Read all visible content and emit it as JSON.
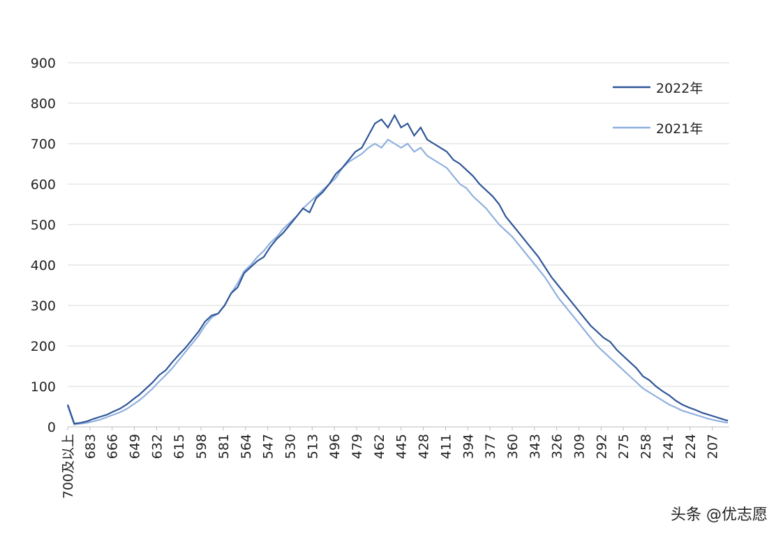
{
  "chart_data": {
    "type": "line",
    "x": [
      700,
      695,
      690,
      685,
      680,
      675,
      670,
      665,
      660,
      655,
      650,
      645,
      640,
      635,
      630,
      625,
      620,
      615,
      610,
      605,
      600,
      595,
      590,
      585,
      580,
      575,
      570,
      565,
      560,
      555,
      550,
      545,
      540,
      535,
      530,
      525,
      520,
      515,
      510,
      505,
      500,
      495,
      490,
      485,
      480,
      475,
      470,
      465,
      460,
      455,
      450,
      445,
      440,
      435,
      430,
      425,
      420,
      415,
      410,
      405,
      400,
      395,
      390,
      385,
      380,
      375,
      370,
      365,
      360,
      355,
      350,
      345,
      340,
      335,
      330,
      325,
      320,
      315,
      310,
      305,
      300,
      295,
      290,
      285,
      280,
      275,
      270,
      265,
      260,
      255,
      250,
      245,
      240,
      235,
      230,
      225,
      220,
      215,
      210,
      205,
      200,
      195
    ],
    "series": [
      {
        "name": "2022年",
        "color": "#2e5597",
        "values": [
          55,
          8,
          10,
          14,
          20,
          25,
          30,
          38,
          45,
          55,
          68,
          80,
          95,
          110,
          128,
          140,
          160,
          178,
          195,
          215,
          235,
          260,
          275,
          280,
          300,
          330,
          345,
          380,
          395,
          410,
          420,
          445,
          465,
          480,
          500,
          520,
          540,
          530,
          565,
          580,
          600,
          625,
          640,
          660,
          680,
          690,
          720,
          750,
          760,
          740,
          770,
          740,
          750,
          720,
          740,
          710,
          700,
          690,
          680,
          660,
          650,
          635,
          620,
          600,
          585,
          570,
          550,
          520,
          500,
          480,
          460,
          440,
          420,
          395,
          370,
          350,
          330,
          310,
          290,
          270,
          250,
          235,
          220,
          210,
          190,
          175,
          160,
          145,
          125,
          115,
          100,
          88,
          78,
          65,
          55,
          48,
          42,
          35,
          30,
          25,
          20,
          15
        ]
      },
      {
        "name": "2021年",
        "color": "#8fb0de",
        "values": [
          52,
          6,
          8,
          10,
          14,
          18,
          24,
          30,
          36,
          44,
          55,
          66,
          80,
          95,
          112,
          128,
          145,
          165,
          185,
          205,
          225,
          250,
          270,
          280,
          300,
          330,
          355,
          385,
          400,
          420,
          435,
          455,
          470,
          490,
          505,
          520,
          540,
          555,
          570,
          585,
          600,
          615,
          640,
          655,
          665,
          675,
          690,
          700,
          690,
          710,
          700,
          690,
          700,
          680,
          690,
          670,
          660,
          650,
          640,
          620,
          600,
          590,
          570,
          555,
          540,
          520,
          500,
          485,
          470,
          450,
          430,
          410,
          390,
          370,
          345,
          320,
          300,
          280,
          260,
          240,
          220,
          200,
          185,
          170,
          155,
          140,
          125,
          110,
          95,
          85,
          75,
          65,
          55,
          48,
          40,
          35,
          30,
          25,
          20,
          16,
          13,
          10
        ]
      }
    ],
    "xlim": [
      700,
      194
    ],
    "xticks": [
      {
        "value": 700,
        "label": "700及以上"
      },
      683,
      666,
      649,
      632,
      615,
      598,
      581,
      564,
      547,
      530,
      513,
      496,
      479,
      462,
      445,
      428,
      411,
      394,
      377,
      360,
      343,
      326,
      309,
      292,
      275,
      258,
      241,
      224,
      207
    ],
    "ylim": [
      0,
      900
    ],
    "yticks": [
      0,
      100,
      200,
      300,
      400,
      500,
      600,
      700,
      800,
      900
    ],
    "grid": true,
    "legend": "top-right"
  },
  "footer": "头条 @优志愿"
}
